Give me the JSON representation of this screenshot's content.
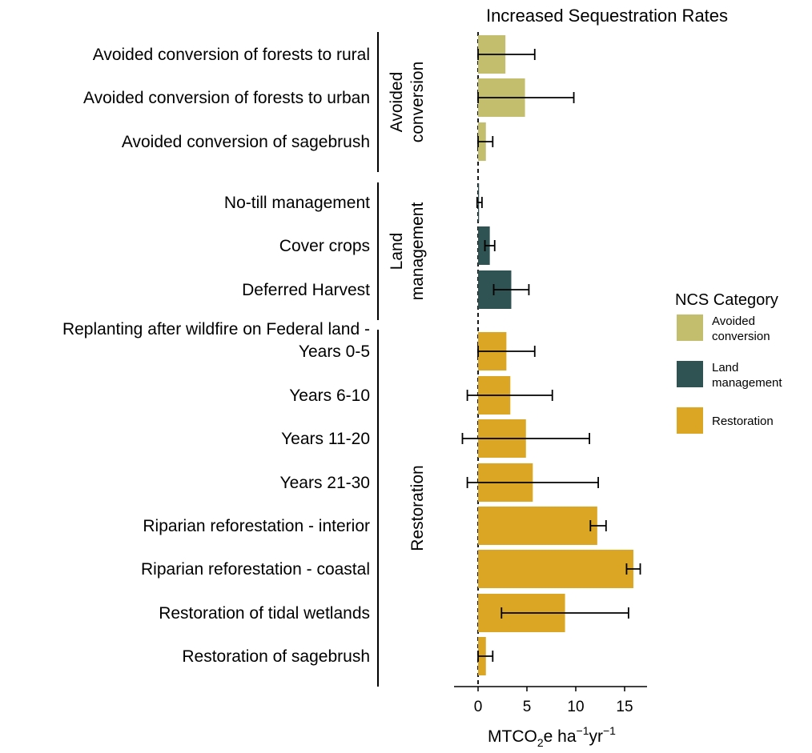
{
  "chart_data": {
    "type": "bar",
    "orientation": "horizontal",
    "title": "Increased Sequestration Rates",
    "xlabel": {
      "main": "MTCO",
      "sub": "2",
      "rest": "e ha",
      "sup1": "−1",
      "yr": "yr",
      "sup2": "−1"
    },
    "xlim": [
      -2.5,
      17.5
    ],
    "xticks": [
      0,
      5,
      10,
      15
    ],
    "reference_line": {
      "x": 0,
      "style": "dashed"
    },
    "groups": [
      {
        "name_lines": [
          "Avoided",
          "conversion"
        ],
        "category": "Avoided conversion"
      },
      {
        "name_lines": [
          "Land",
          "management"
        ],
        "category": "Land management"
      },
      {
        "name_lines": [
          "Restoration"
        ],
        "category": "Restoration"
      }
    ],
    "bars": [
      {
        "label_lines": [
          "Avoided conversion of forests to rural"
        ],
        "category": "Avoided conversion",
        "value": 2.8,
        "err_low": 0.0,
        "err_high": 5.8
      },
      {
        "label_lines": [
          "Avoided conversion of forests to urban"
        ],
        "category": "Avoided conversion",
        "value": 4.8,
        "err_low": 0.0,
        "err_high": 9.8
      },
      {
        "label_lines": [
          "Avoided conversion of sagebrush"
        ],
        "category": "Avoided conversion",
        "value": 0.8,
        "err_low": 0.0,
        "err_high": 1.5
      },
      {
        "label_lines": [
          "No-till management"
        ],
        "category": "Land management",
        "value": 0.1,
        "err_low": -0.1,
        "err_high": 0.4
      },
      {
        "label_lines": [
          "Cover crops"
        ],
        "category": "Land management",
        "value": 1.2,
        "err_low": 0.7,
        "err_high": 1.7
      },
      {
        "label_lines": [
          "Deferred Harvest"
        ],
        "category": "Land management",
        "value": 3.4,
        "err_low": 1.6,
        "err_high": 5.2
      },
      {
        "label_lines": [
          "Replanting after wildfire on Federal land -",
          "Years 0-5"
        ],
        "category": "Restoration",
        "value": 2.9,
        "err_low": 0.0,
        "err_high": 5.8
      },
      {
        "label_lines": [
          "Years  6-10"
        ],
        "category": "Restoration",
        "value": 3.3,
        "err_low": -1.1,
        "err_high": 7.6
      },
      {
        "label_lines": [
          "Years 11-20"
        ],
        "category": "Restoration",
        "value": 4.9,
        "err_low": -1.6,
        "err_high": 11.4
      },
      {
        "label_lines": [
          "Years 21-30"
        ],
        "category": "Restoration",
        "value": 5.6,
        "err_low": -1.1,
        "err_high": 12.3
      },
      {
        "label_lines": [
          "Riparian reforestation - interior"
        ],
        "category": "Restoration",
        "value": 12.2,
        "err_low": 11.5,
        "err_high": 13.1
      },
      {
        "label_lines": [
          "Riparian reforestation - coastal"
        ],
        "category": "Restoration",
        "value": 15.9,
        "err_low": 15.2,
        "err_high": 16.6
      },
      {
        "label_lines": [
          "Restoration of tidal wetlands"
        ],
        "category": "Restoration",
        "value": 8.9,
        "err_low": 2.4,
        "err_high": 15.4
      },
      {
        "label_lines": [
          "Restoration of sagebrush"
        ],
        "category": "Restoration",
        "value": 0.8,
        "err_low": 0.0,
        "err_high": 1.5
      }
    ],
    "legend": {
      "title": "NCS Category",
      "placement": "right",
      "items": [
        {
          "name_lines": [
            "Avoided",
            "conversion"
          ],
          "color": "#c3bd6e"
        },
        {
          "name_lines": [
            "Land",
            "management"
          ],
          "color": "#2f5352"
        },
        {
          "name_lines": [
            "Restoration"
          ],
          "color": "#dba623"
        }
      ]
    },
    "colors": {
      "Avoided conversion": "#c3bd6e",
      "Land management": "#2f5352",
      "Restoration": "#dba623"
    }
  }
}
